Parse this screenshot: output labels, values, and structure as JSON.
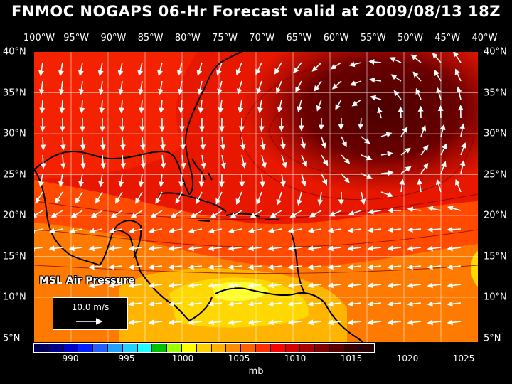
{
  "title": "FNMOC NOGAPS 06-Hr Forecast valid at 2009/08/13 18Z",
  "lon_labels": [
    "100°W",
    "95°W",
    "90°W",
    "85°W",
    "80°W",
    "75°W",
    "70°W",
    "65°W",
    "60°W",
    "55°W",
    "50°W",
    "45°W",
    "40°W"
  ],
  "lat_labels": [
    "40°N",
    "35°N",
    "30°N",
    "25°N",
    "20°N",
    "15°N",
    "10°N",
    "5°N"
  ],
  "field_caption": "MSL Air Pressure",
  "reference_vector": "10.0 m/s",
  "colorbar": {
    "colors": [
      "#00005a",
      "#00008c",
      "#0000c8",
      "#0020ff",
      "#2060ff",
      "#20a0ff",
      "#20d0ff",
      "#20ffff",
      "#00c000",
      "#a0ff00",
      "#ffff00",
      "#ffd000",
      "#ffb000",
      "#ff8c00",
      "#ff6000",
      "#ff3000",
      "#ff0000",
      "#d40000",
      "#aa0000",
      "#800000",
      "#5a0000",
      "#3a0000",
      "#2a0000"
    ],
    "tick_labels": [
      "990",
      "995",
      "1000",
      "1005",
      "1010",
      "1015",
      "1020",
      "1025"
    ],
    "unit": "mb"
  },
  "map_colors": {
    "deep_low_band": "#ff3000",
    "main_field": "#ff2000",
    "ridge_center": "#6a0000",
    "ridge_core": "#4a0000",
    "south_band": "#ff6000",
    "yellow_zone": "#ffd000",
    "yellow_core": "#ffff00",
    "land_outline": "#000000",
    "vector_color": "#ffffff",
    "grid_color": "#ffffff"
  }
}
